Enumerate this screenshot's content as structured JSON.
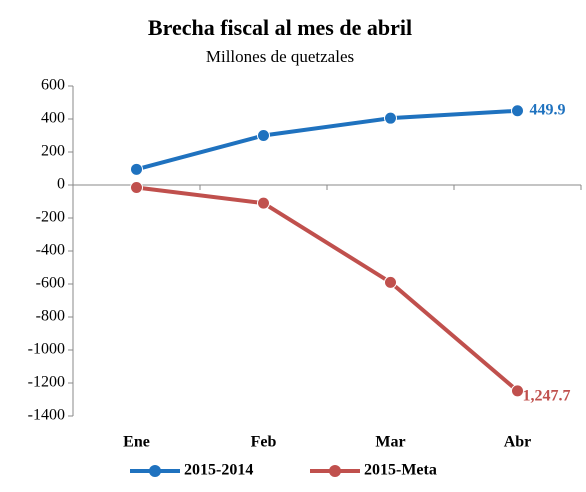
{
  "chart_data": {
    "type": "line",
    "title": "Brecha fiscal al mes de abril",
    "subtitle": "Millones de quetzales",
    "categories": [
      "Ene",
      "Feb",
      "Mar",
      "Abr"
    ],
    "series": [
      {
        "name": "2015-2014",
        "color": "#1f72bf",
        "values": [
          95,
          300,
          405,
          449.9
        ],
        "value_labels": [
          null,
          null,
          null,
          "449.9"
        ]
      },
      {
        "name": "2015-Meta",
        "color": "#c0504d",
        "values": [
          -15,
          -110,
          -590,
          -1247.7
        ],
        "value_labels": [
          null,
          null,
          null,
          "1,247.7"
        ]
      }
    ],
    "ylim": [
      -1400,
      600
    ],
    "yticks": [
      -1400,
      -1200,
      -1000,
      -800,
      -600,
      -400,
      -200,
      0,
      200,
      400,
      600
    ],
    "legend": "bottom"
  }
}
